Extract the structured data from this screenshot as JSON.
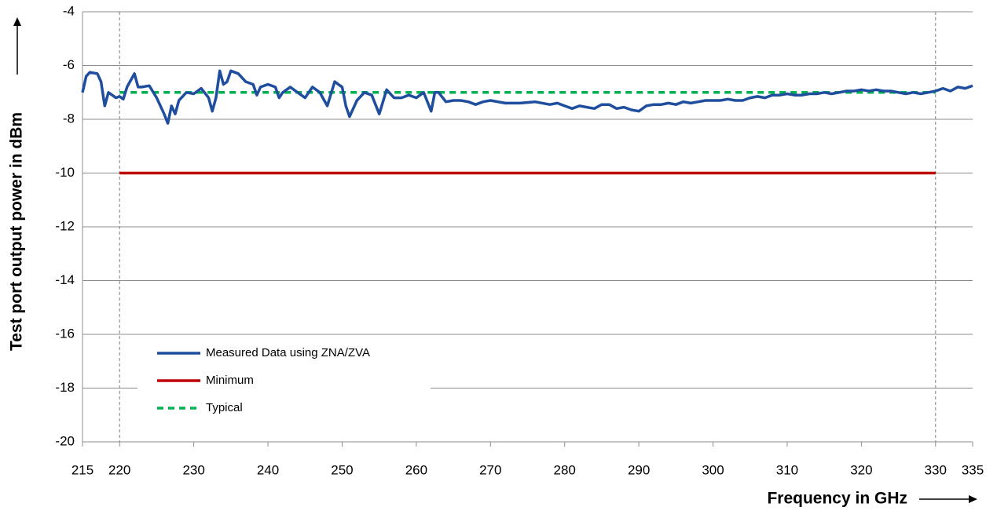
{
  "chart_data": {
    "type": "line",
    "x_label": "Frequency in GHz",
    "y_label": "Test port output power in dBm",
    "xlim": [
      215,
      335
    ],
    "xticks": [
      215,
      220,
      230,
      240,
      250,
      260,
      270,
      280,
      290,
      300,
      310,
      320,
      330,
      335
    ],
    "ylim": [
      -20,
      -4
    ],
    "yticks": [
      -4,
      -6,
      -8,
      -10,
      -12,
      -14,
      -16,
      -18,
      -20
    ],
    "grid": true,
    "band_edges": [
      220,
      330
    ],
    "legend": "lower left",
    "series": [
      {
        "name": "Measured Data using ZNA/ZVA",
        "color": "#1f4e9f",
        "style": "solid",
        "x": [
          215,
          215.5,
          216,
          217,
          217.5,
          218,
          218.5,
          219,
          219.5,
          220,
          220.5,
          221,
          222,
          222.5,
          223,
          224,
          225,
          226,
          226.5,
          227,
          227.5,
          228,
          229,
          230,
          231,
          232,
          232.5,
          233,
          233.5,
          234,
          234.5,
          235,
          236,
          237,
          238,
          238.5,
          239,
          240,
          241,
          241.5,
          242,
          243,
          244,
          245,
          246,
          247,
          248,
          249,
          250,
          250.5,
          251,
          252,
          253,
          254,
          255,
          256,
          257,
          258,
          259,
          260,
          261,
          262,
          262.5,
          263,
          264,
          265,
          266,
          267,
          268,
          269,
          270,
          272,
          274,
          276,
          278,
          279,
          280,
          281,
          282,
          283,
          284,
          285,
          286,
          287,
          288,
          289,
          290,
          291,
          292,
          293,
          294,
          295,
          296,
          297,
          298,
          299,
          300,
          301,
          302,
          303,
          304,
          305,
          306,
          307,
          308,
          309,
          310,
          311,
          312,
          313,
          314,
          315,
          316,
          317,
          318,
          319,
          320,
          321,
          322,
          323,
          324,
          325,
          326,
          327,
          328,
          329,
          330,
          331,
          332,
          333,
          334,
          335
        ],
        "values": [
          -7.0,
          -6.4,
          -6.25,
          -6.3,
          -6.6,
          -7.5,
          -7.0,
          -7.1,
          -7.2,
          -7.15,
          -7.25,
          -6.8,
          -6.3,
          -6.8,
          -6.8,
          -6.75,
          -7.2,
          -7.8,
          -8.15,
          -7.5,
          -7.8,
          -7.3,
          -7.0,
          -7.05,
          -6.85,
          -7.2,
          -7.7,
          -7.2,
          -6.2,
          -6.7,
          -6.6,
          -6.2,
          -6.3,
          -6.6,
          -6.7,
          -7.1,
          -6.8,
          -6.7,
          -6.8,
          -7.2,
          -7.0,
          -6.8,
          -7.0,
          -7.2,
          -6.8,
          -7.0,
          -7.5,
          -6.6,
          -6.8,
          -7.5,
          -7.9,
          -7.3,
          -7.0,
          -7.1,
          -7.8,
          -6.9,
          -7.2,
          -7.2,
          -7.1,
          -7.2,
          -7.0,
          -7.7,
          -7.0,
          -7.0,
          -7.35,
          -7.3,
          -7.3,
          -7.35,
          -7.45,
          -7.35,
          -7.3,
          -7.4,
          -7.4,
          -7.35,
          -7.45,
          -7.4,
          -7.5,
          -7.6,
          -7.5,
          -7.55,
          -7.6,
          -7.45,
          -7.45,
          -7.6,
          -7.55,
          -7.65,
          -7.7,
          -7.5,
          -7.45,
          -7.45,
          -7.4,
          -7.45,
          -7.35,
          -7.4,
          -7.35,
          -7.3,
          -7.3,
          -7.3,
          -7.25,
          -7.3,
          -7.3,
          -7.2,
          -7.15,
          -7.2,
          -7.1,
          -7.1,
          -7.05,
          -7.1,
          -7.1,
          -7.05,
          -7.05,
          -7.0,
          -7.05,
          -7.0,
          -6.95,
          -6.95,
          -6.9,
          -6.95,
          -6.9,
          -6.95,
          -6.95,
          -7.0,
          -7.05,
          -7.0,
          -7.05,
          -7.0,
          -6.95,
          -6.85,
          -6.95,
          -6.8,
          -6.85,
          -6.75
        ]
      },
      {
        "name": "Minimum",
        "color": "#c00000",
        "style": "solid",
        "x": [
          220,
          330
        ],
        "values": [
          -10,
          -10
        ]
      },
      {
        "name": "Typical",
        "color": "#00b050",
        "style": "dashed",
        "x": [
          220,
          330
        ],
        "values": [
          -7,
          -7
        ]
      }
    ]
  }
}
